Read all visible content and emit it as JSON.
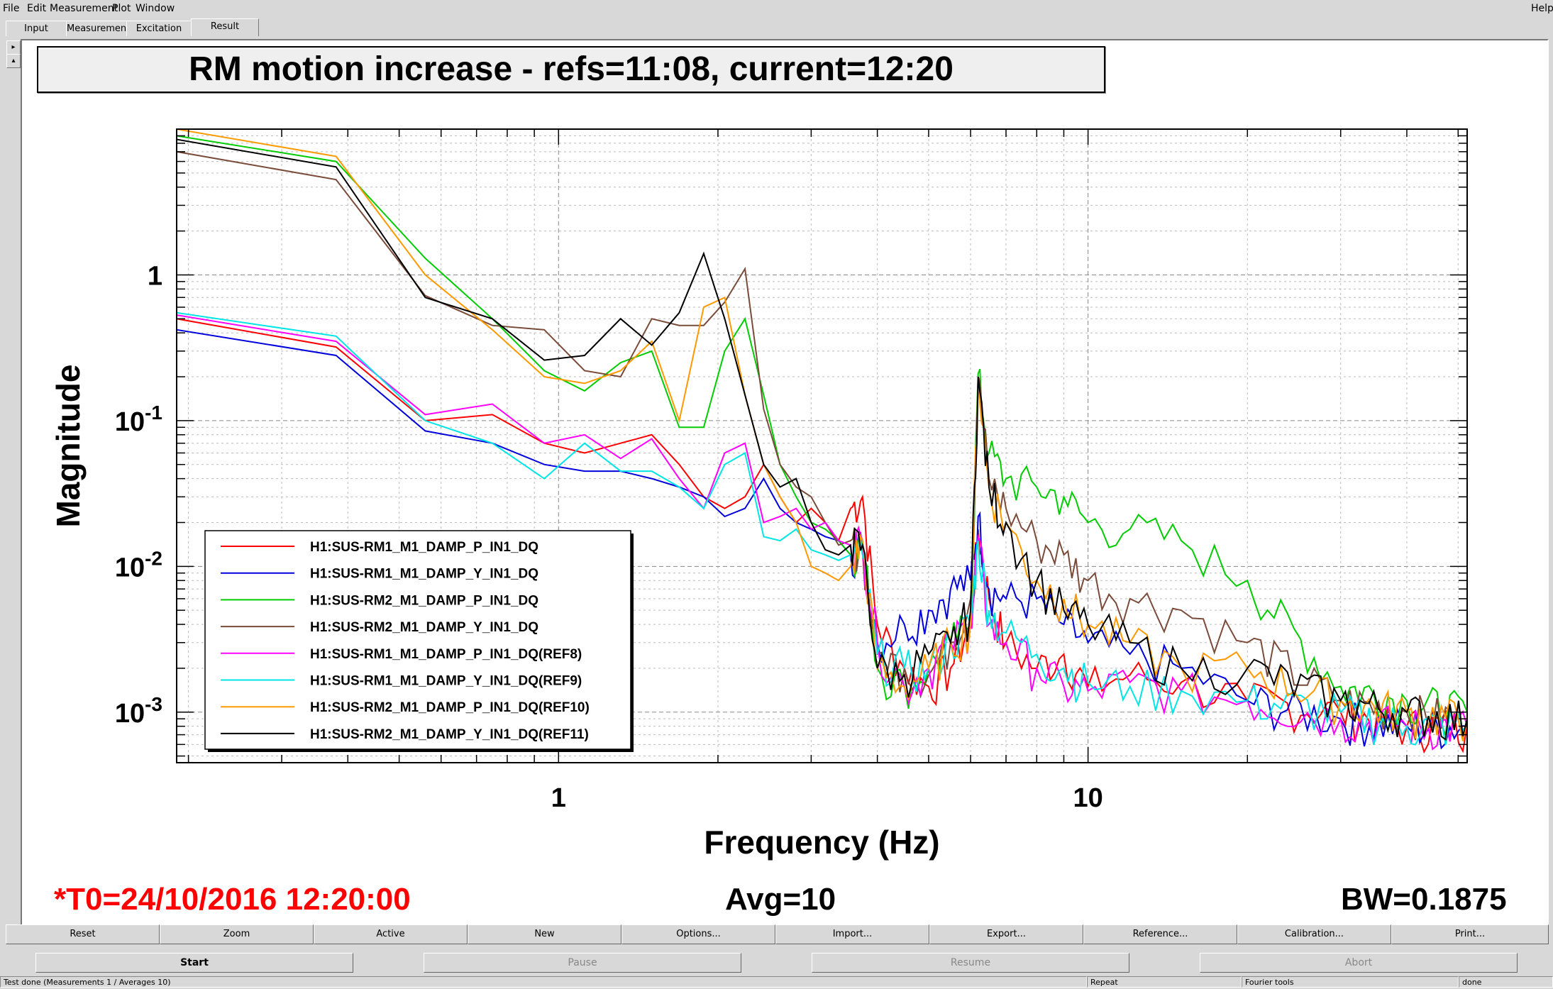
{
  "menu": {
    "items": [
      "File",
      "Edit",
      "Measurement",
      "Plot",
      "Window"
    ],
    "help": "Help"
  },
  "tabs": [
    "Input",
    "Measurement",
    "Excitation",
    "Result"
  ],
  "active_tab": "Result",
  "plot_title": "RM motion increase - refs=11:08, current=12:20",
  "footer": {
    "t0": "*T0=24/10/2016 12:20:00",
    "avg": "Avg=10",
    "bw": "BW=0.1875"
  },
  "colors": {
    "t0_text": "#ff0000",
    "background": "#d8d8d8",
    "plot_bg": "#ffffff"
  },
  "chart_data": {
    "type": "line",
    "xlabel": "Frequency (Hz)",
    "ylabel": "Magnitude",
    "x_scale": "log",
    "y_scale": "log",
    "xlim": [
      0.19,
      52
    ],
    "ylim": [
      0.00045,
      10
    ],
    "x_ticklabels": [
      "1",
      "10"
    ],
    "y_ticklabels": [
      "1",
      "10-1",
      "10-2",
      "10-3"
    ],
    "grid": true,
    "legend_position": "bottom-left",
    "series": [
      {
        "name": "H1:SUS-RM1_M1_DAMP_P_IN1_DQ",
        "color": "#ff0000",
        "x": [
          0.19,
          0.38,
          0.56,
          0.75,
          0.94,
          1.12,
          1.31,
          1.5,
          1.69,
          1.88,
          2.06,
          2.25,
          2.44,
          2.62,
          2.81,
          3.0,
          3.19,
          3.38,
          3.56,
          3.75,
          4.0,
          4.5,
          5.0,
          5.5,
          6.0,
          6.2,
          6.5,
          7.0,
          8.0,
          9.0,
          10.0,
          12.0,
          15.0,
          20.0,
          30.0,
          40.0,
          52.0
        ],
        "y": [
          0.5,
          0.32,
          0.1,
          0.11,
          0.07,
          0.06,
          0.07,
          0.08,
          0.05,
          0.03,
          0.025,
          0.03,
          0.05,
          0.03,
          0.02,
          0.025,
          0.02,
          0.015,
          0.025,
          0.03,
          0.004,
          0.002,
          0.0015,
          0.002,
          0.004,
          0.018,
          0.006,
          0.003,
          0.002,
          0.0025,
          0.0015,
          0.0018,
          0.0016,
          0.0012,
          0.001,
          0.0008,
          0.0008
        ]
      },
      {
        "name": "H1:SUS-RM1_M1_DAMP_Y_IN1_DQ",
        "color": "#0000dd",
        "x": [
          0.19,
          0.38,
          0.56,
          0.75,
          0.94,
          1.12,
          1.31,
          1.5,
          1.69,
          1.88,
          2.06,
          2.25,
          2.44,
          2.62,
          2.81,
          3.0,
          3.19,
          3.38,
          3.56,
          3.75,
          4.0,
          4.5,
          5.0,
          5.5,
          6.0,
          6.2,
          6.5,
          7.0,
          8.0,
          9.0,
          10.0,
          12.0,
          15.0,
          20.0,
          30.0,
          40.0,
          52.0
        ],
        "y": [
          0.42,
          0.28,
          0.085,
          0.07,
          0.05,
          0.045,
          0.045,
          0.04,
          0.035,
          0.03,
          0.022,
          0.025,
          0.04,
          0.025,
          0.02,
          0.018,
          0.016,
          0.015,
          0.012,
          0.014,
          0.003,
          0.004,
          0.005,
          0.007,
          0.008,
          0.022,
          0.007,
          0.006,
          0.006,
          0.004,
          0.003,
          0.0025,
          0.002,
          0.0012,
          0.0009,
          0.0008,
          0.0008
        ]
      },
      {
        "name": "H1:SUS-RM2_M1_DAMP_P_IN1_DQ",
        "color": "#00cc00",
        "x": [
          0.19,
          0.38,
          0.56,
          0.75,
          0.94,
          1.12,
          1.31,
          1.5,
          1.69,
          1.88,
          2.06,
          2.25,
          2.44,
          2.62,
          2.81,
          3.0,
          3.19,
          3.38,
          3.56,
          3.75,
          4.0,
          4.5,
          5.0,
          5.5,
          6.0,
          6.2,
          6.5,
          7.0,
          8.0,
          9.0,
          10.0,
          12.0,
          15.0,
          20.0,
          30.0,
          40.0,
          52.0
        ],
        "y": [
          9.0,
          6.0,
          1.3,
          0.5,
          0.22,
          0.16,
          0.25,
          0.3,
          0.09,
          0.09,
          0.3,
          0.5,
          0.15,
          0.05,
          0.03,
          0.02,
          0.018,
          0.015,
          0.012,
          0.015,
          0.002,
          0.0015,
          0.002,
          0.003,
          0.004,
          0.21,
          0.06,
          0.04,
          0.035,
          0.03,
          0.02,
          0.018,
          0.015,
          0.008,
          0.0015,
          0.0012,
          0.001
        ]
      },
      {
        "name": "H1:SUS-RM2_M1_DAMP_Y_IN1_DQ",
        "color": "#7b4b3a",
        "x": [
          0.19,
          0.38,
          0.56,
          0.75,
          0.94,
          1.12,
          1.31,
          1.5,
          1.69,
          1.88,
          2.06,
          2.25,
          2.44,
          2.62,
          2.81,
          3.0,
          3.19,
          3.38,
          3.56,
          3.75,
          4.0,
          4.5,
          5.0,
          5.5,
          6.0,
          6.2,
          6.5,
          7.0,
          8.0,
          9.0,
          10.0,
          12.0,
          15.0,
          20.0,
          30.0,
          40.0,
          52.0
        ],
        "y": [
          7.0,
          4.5,
          0.72,
          0.45,
          0.42,
          0.22,
          0.2,
          0.5,
          0.45,
          0.45,
          0.65,
          1.1,
          0.12,
          0.05,
          0.035,
          0.03,
          0.02,
          0.014,
          0.015,
          0.013,
          0.0025,
          0.002,
          0.0018,
          0.003,
          0.006,
          0.2,
          0.04,
          0.025,
          0.015,
          0.012,
          0.008,
          0.006,
          0.005,
          0.003,
          0.0012,
          0.001,
          0.0009
        ]
      },
      {
        "name": "H1:SUS-RM1_M1_DAMP_P_IN1_DQ(REF8)",
        "color": "#ff00ff",
        "x": [
          0.19,
          0.38,
          0.56,
          0.75,
          0.94,
          1.12,
          1.31,
          1.5,
          1.69,
          1.88,
          2.06,
          2.25,
          2.44,
          2.62,
          2.81,
          3.0,
          3.19,
          3.38,
          3.56,
          3.75,
          4.0,
          4.5,
          5.0,
          5.5,
          6.0,
          6.2,
          6.5,
          7.0,
          8.0,
          9.0,
          10.0,
          12.0,
          15.0,
          20.0,
          30.0,
          40.0,
          52.0
        ],
        "y": [
          0.53,
          0.35,
          0.11,
          0.13,
          0.07,
          0.08,
          0.055,
          0.075,
          0.04,
          0.025,
          0.06,
          0.07,
          0.02,
          0.022,
          0.025,
          0.018,
          0.02,
          0.015,
          0.014,
          0.015,
          0.003,
          0.0015,
          0.002,
          0.003,
          0.004,
          0.016,
          0.004,
          0.003,
          0.002,
          0.0015,
          0.0014,
          0.0016,
          0.0014,
          0.0012,
          0.0009,
          0.0008,
          0.0008
        ]
      },
      {
        "name": "H1:SUS-RM1_M1_DAMP_Y_IN1_DQ(REF9)",
        "color": "#00e5e5",
        "x": [
          0.19,
          0.38,
          0.56,
          0.75,
          0.94,
          1.12,
          1.31,
          1.5,
          1.69,
          1.88,
          2.06,
          2.25,
          2.44,
          2.62,
          2.81,
          3.0,
          3.19,
          3.38,
          3.56,
          3.75,
          4.0,
          4.5,
          5.0,
          5.5,
          6.0,
          6.2,
          6.5,
          7.0,
          8.0,
          9.0,
          10.0,
          12.0,
          15.0,
          20.0,
          30.0,
          40.0,
          52.0
        ],
        "y": [
          0.55,
          0.38,
          0.1,
          0.07,
          0.04,
          0.07,
          0.045,
          0.045,
          0.035,
          0.025,
          0.05,
          0.06,
          0.016,
          0.015,
          0.018,
          0.013,
          0.012,
          0.011,
          0.012,
          0.012,
          0.0025,
          0.002,
          0.002,
          0.003,
          0.004,
          0.015,
          0.005,
          0.0035,
          0.0025,
          0.002,
          0.0016,
          0.0015,
          0.0014,
          0.0012,
          0.001,
          0.0008,
          0.0008
        ]
      },
      {
        "name": "H1:SUS-RM2_M1_DAMP_P_IN1_DQ(REF10)",
        "color": "#ff9900",
        "x": [
          0.19,
          0.38,
          0.56,
          0.75,
          0.94,
          1.12,
          1.31,
          1.5,
          1.69,
          1.88,
          2.06,
          2.25,
          2.44,
          2.62,
          2.81,
          3.0,
          3.19,
          3.38,
          3.56,
          3.75,
          4.0,
          4.5,
          5.0,
          5.5,
          6.0,
          6.2,
          6.5,
          7.0,
          8.0,
          9.0,
          10.0,
          12.0,
          15.0,
          20.0,
          30.0,
          40.0,
          52.0
        ],
        "y": [
          10.0,
          6.5,
          1.0,
          0.42,
          0.2,
          0.18,
          0.22,
          0.35,
          0.1,
          0.6,
          0.7,
          0.15,
          0.05,
          0.03,
          0.02,
          0.01,
          0.009,
          0.008,
          0.01,
          0.015,
          0.002,
          0.0015,
          0.002,
          0.003,
          0.004,
          0.2,
          0.035,
          0.02,
          0.008,
          0.006,
          0.004,
          0.003,
          0.002,
          0.002,
          0.0012,
          0.001,
          0.0009
        ]
      },
      {
        "name": "H1:SUS-RM2_M1_DAMP_Y_IN1_DQ(REF11)",
        "color": "#000000",
        "x": [
          0.19,
          0.38,
          0.56,
          0.75,
          0.94,
          1.12,
          1.31,
          1.5,
          1.69,
          1.88,
          2.06,
          2.25,
          2.44,
          2.62,
          2.81,
          3.0,
          3.19,
          3.38,
          3.56,
          3.75,
          4.0,
          4.5,
          5.0,
          5.5,
          6.0,
          6.2,
          6.5,
          7.0,
          8.0,
          9.0,
          10.0,
          12.0,
          15.0,
          20.0,
          30.0,
          40.0,
          52.0
        ],
        "y": [
          8.5,
          5.5,
          0.7,
          0.5,
          0.26,
          0.28,
          0.5,
          0.33,
          0.55,
          1.4,
          0.5,
          0.15,
          0.05,
          0.035,
          0.04,
          0.02,
          0.013,
          0.012,
          0.014,
          0.014,
          0.002,
          0.0018,
          0.0025,
          0.003,
          0.005,
          0.2,
          0.035,
          0.02,
          0.008,
          0.005,
          0.004,
          0.003,
          0.002,
          0.002,
          0.0012,
          0.001,
          0.0009
        ]
      }
    ]
  },
  "toolbar": [
    "Reset",
    "Zoom",
    "Active",
    "New",
    "Options...",
    "Import...",
    "Export...",
    "Reference...",
    "Calibration...",
    "Print..."
  ],
  "controls": [
    "Start",
    "Pause",
    "Resume",
    "Abort"
  ],
  "status": {
    "message": "Test done (Measurements 1 / Averages 10)",
    "repeat": "Repeat",
    "fourier": "Fourier tools",
    "done": "done"
  }
}
